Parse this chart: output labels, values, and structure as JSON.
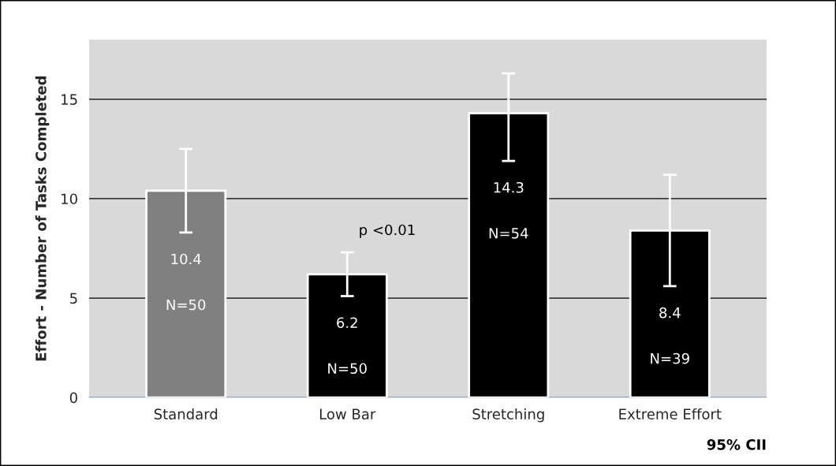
{
  "chart_data": {
    "type": "bar",
    "ylabel": "Effort - Number of Tasks Completed",
    "categories": [
      "Standard",
      "Low Bar",
      "Stretching",
      "Extreme Effort"
    ],
    "values": [
      10.4,
      6.2,
      14.3,
      8.4
    ],
    "colors": [
      "#808080",
      "#000000",
      "#000000",
      "#000000"
    ],
    "errors": [
      [
        8.3,
        12.5
      ],
      [
        5.1,
        7.3
      ],
      [
        11.9,
        16.3
      ],
      [
        5.6,
        11.2
      ]
    ],
    "data_labels": true,
    "ylim": [
      0,
      18
    ],
    "yticks": [
      0,
      5,
      10,
      15
    ],
    "grid": "y",
    "annotations": [
      "N=50",
      "N=50",
      "N=54",
      "N=39",
      "p <0.01",
      "95% CII"
    ]
  }
}
